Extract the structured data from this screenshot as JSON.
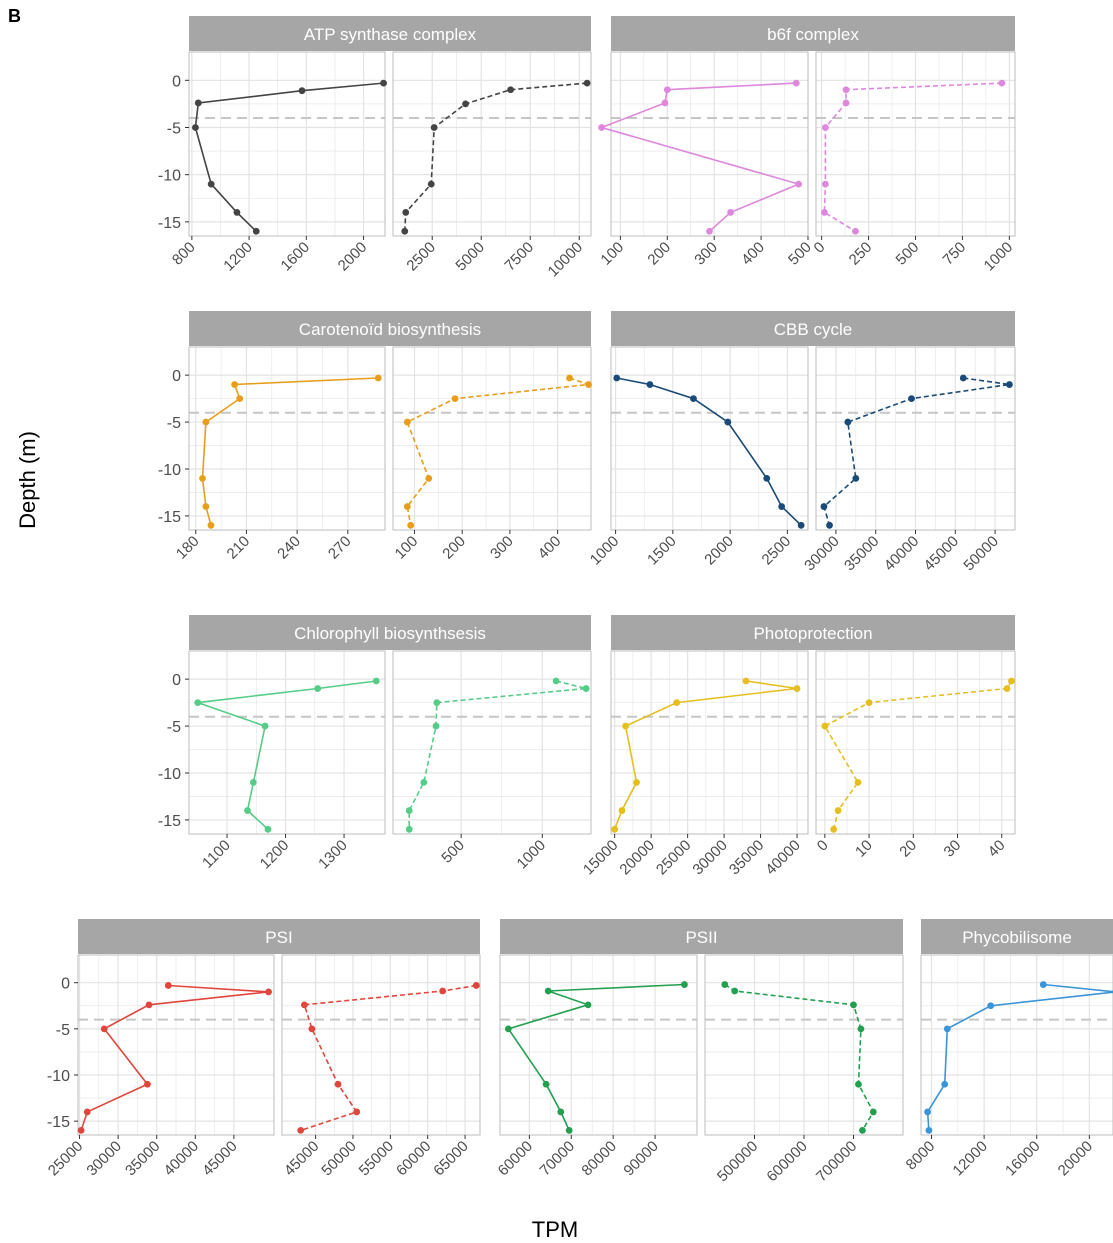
{
  "panel_label": "B",
  "ylabel": "Depth (m)",
  "xlabel": "TPM",
  "colors": {
    "atp": "#444444",
    "b6f": "#dd88dd",
    "carot": "#e79e1b",
    "cbb": "#1a4a77",
    "chl": "#55cc88",
    "photoprot": "#e6bf1e",
    "psi": "#e0463b",
    "psii": "#22a050",
    "phyco": "#3a95d8",
    "strip": "#a6a6a6",
    "grid": "#e3e3e3",
    "dash": "#c6c6c6"
  },
  "chart_data": {
    "type": "line",
    "ylim": [
      -16.5,
      3
    ],
    "y_ticks": [
      0,
      -5,
      -10,
      -15
    ],
    "y_tick_labels": [
      "0",
      "-5",
      "-10",
      "-15"
    ],
    "reference_line_depth": -4,
    "grid": true,
    "facets": [
      {
        "title": "ATP synthase complex",
        "color_key": "atp",
        "panels": [
          {
            "style": "solid",
            "xlim": [
              780,
              2150
            ],
            "x_ticks": [
              800,
              1200,
              1600,
              2000
            ],
            "x_tick_labels": [
              "800",
              "1200",
              "1600",
              "2000"
            ],
            "points": [
              {
                "x": 2140,
                "y": -0.3
              },
              {
                "x": 1570,
                "y": -1.1
              },
              {
                "x": 845,
                "y": -2.4
              },
              {
                "x": 825,
                "y": -5
              },
              {
                "x": 935,
                "y": -11
              },
              {
                "x": 1115,
                "y": -14
              },
              {
                "x": 1250,
                "y": -16
              }
            ]
          },
          {
            "style": "dashed",
            "xlim": [
              500,
              10600
            ],
            "x_ticks": [
              2500,
              5000,
              7500,
              10000
            ],
            "x_tick_labels": [
              "2500",
              "5000",
              "7500",
              "10000"
            ],
            "points": [
              {
                "x": 10400,
                "y": -0.3
              },
              {
                "x": 6500,
                "y": -1
              },
              {
                "x": 4200,
                "y": -2.5
              },
              {
                "x": 2600,
                "y": -5
              },
              {
                "x": 2450,
                "y": -11
              },
              {
                "x": 1150,
                "y": -14
              },
              {
                "x": 1100,
                "y": -16
              }
            ]
          }
        ]
      },
      {
        "title": "b6f complex",
        "color_key": "b6f",
        "panels": [
          {
            "style": "solid",
            "xlim": [
              80,
              500
            ],
            "x_ticks": [
              100,
              200,
              300,
              400,
              500
            ],
            "x_tick_labels": [
              "100",
              "200",
              "300",
              "400",
              "500"
            ],
            "points": [
              {
                "x": 475,
                "y": -0.3
              },
              {
                "x": 200,
                "y": -1
              },
              {
                "x": 195,
                "y": -2.4
              },
              {
                "x": 60,
                "y": -5
              },
              {
                "x": 480,
                "y": -11
              },
              {
                "x": 335,
                "y": -14
              },
              {
                "x": 290,
                "y": -16
              }
            ]
          },
          {
            "style": "dashed",
            "xlim": [
              -30,
              1030
            ],
            "x_ticks": [
              0,
              250,
              500,
              750,
              1000
            ],
            "x_tick_labels": [
              "0",
              "250",
              "500",
              "750",
              "1000"
            ],
            "points": [
              {
                "x": 960,
                "y": -0.3
              },
              {
                "x": 130,
                "y": -1
              },
              {
                "x": 130,
                "y": -2.4
              },
              {
                "x": 20,
                "y": -5
              },
              {
                "x": 20,
                "y": -11
              },
              {
                "x": 15,
                "y": -14
              },
              {
                "x": 180,
                "y": -16
              }
            ]
          }
        ]
      },
      {
        "title": "Carotenoïd biosynthesis",
        "color_key": "carot",
        "panels": [
          {
            "style": "solid",
            "xlim": [
              176,
              292
            ],
            "x_ticks": [
              180,
              210,
              240,
              270
            ],
            "x_tick_labels": [
              "180",
              "210",
              "240",
              "270"
            ],
            "points": [
              {
                "x": 288,
                "y": -0.3
              },
              {
                "x": 203,
                "y": -1
              },
              {
                "x": 206,
                "y": -2.5
              },
              {
                "x": 186,
                "y": -5
              },
              {
                "x": 184,
                "y": -11
              },
              {
                "x": 186,
                "y": -14
              },
              {
                "x": 189,
                "y": -16
              }
            ]
          },
          {
            "style": "dashed",
            "xlim": [
              55,
              470
            ],
            "x_ticks": [
              100,
              200,
              300,
              400
            ],
            "x_tick_labels": [
              "100",
              "200",
              "300",
              "400"
            ],
            "points": [
              {
                "x": 425,
                "y": -0.3
              },
              {
                "x": 465,
                "y": -1
              },
              {
                "x": 185,
                "y": -2.5
              },
              {
                "x": 85,
                "y": -5
              },
              {
                "x": 130,
                "y": -11
              },
              {
                "x": 85,
                "y": -14
              },
              {
                "x": 92,
                "y": -16
              }
            ]
          }
        ]
      },
      {
        "title": "CBB cycle",
        "color_key": "cbb",
        "panels": [
          {
            "style": "solid",
            "xlim": [
              960,
              2680
            ],
            "x_ticks": [
              1000,
              1500,
              2000,
              2500
            ],
            "x_tick_labels": [
              "1000",
              "1500",
              "2000",
              "2500"
            ],
            "points": [
              {
                "x": 1010,
                "y": -0.3
              },
              {
                "x": 1300,
                "y": -1
              },
              {
                "x": 1680,
                "y": -2.5
              },
              {
                "x": 1980,
                "y": -5
              },
              {
                "x": 2320,
                "y": -11
              },
              {
                "x": 2450,
                "y": -14
              },
              {
                "x": 2620,
                "y": -16
              }
            ]
          },
          {
            "style": "dashed",
            "xlim": [
              27500,
              52500
            ],
            "x_ticks": [
              30000,
              35000,
              40000,
              45000,
              50000
            ],
            "x_tick_labels": [
              "30000",
              "35000",
              "40000",
              "45000",
              "50000"
            ],
            "points": [
              {
                "x": 46000,
                "y": -0.3
              },
              {
                "x": 51800,
                "y": -1
              },
              {
                "x": 39500,
                "y": -2.5
              },
              {
                "x": 31500,
                "y": -5
              },
              {
                "x": 32500,
                "y": -11
              },
              {
                "x": 28500,
                "y": -14
              },
              {
                "x": 29200,
                "y": -16
              }
            ]
          }
        ]
      },
      {
        "title": "Chlorophyll biosynthsesis",
        "color_key": "chl",
        "panels": [
          {
            "style": "solid",
            "xlim": [
              1035,
              1370
            ],
            "x_ticks": [
              1100,
              1200,
              1300
            ],
            "x_tick_labels": [
              "1100",
              "1200",
              "1300"
            ],
            "points": [
              {
                "x": 1355,
                "y": -0.2
              },
              {
                "x": 1255,
                "y": -1
              },
              {
                "x": 1050,
                "y": -2.5
              },
              {
                "x": 1165,
                "y": -5
              },
              {
                "x": 1145,
                "y": -11
              },
              {
                "x": 1135,
                "y": -14
              },
              {
                "x": 1170,
                "y": -16
              }
            ]
          },
          {
            "style": "dashed",
            "xlim": [
              80,
              1300
            ],
            "x_ticks": [
              500,
              1000
            ],
            "x_tick_labels": [
              "500",
              "1000"
            ],
            "points": [
              {
                "x": 1085,
                "y": -0.2
              },
              {
                "x": 1270,
                "y": -1
              },
              {
                "x": 350,
                "y": -2.5
              },
              {
                "x": 345,
                "y": -5
              },
              {
                "x": 270,
                "y": -11
              },
              {
                "x": 180,
                "y": -14
              },
              {
                "x": 180,
                "y": -16
              }
            ]
          }
        ]
      },
      {
        "title": "Photoprotection",
        "color_key": "photoprot",
        "panels": [
          {
            "style": "solid",
            "xlim": [
              14500,
              41500
            ],
            "x_ticks": [
              15000,
              20000,
              25000,
              30000,
              35000,
              40000
            ],
            "x_tick_labels": [
              "15000",
              "20000",
              "25000",
              "30000",
              "35000",
              "40000"
            ],
            "points": [
              {
                "x": 33000,
                "y": -0.2
              },
              {
                "x": 40000,
                "y": -1
              },
              {
                "x": 23500,
                "y": -2.5
              },
              {
                "x": 16500,
                "y": -5
              },
              {
                "x": 18000,
                "y": -11
              },
              {
                "x": 16000,
                "y": -14
              },
              {
                "x": 15000,
                "y": -16
              }
            ]
          },
          {
            "style": "dashed",
            "xlim": [
              -2,
              43
            ],
            "x_ticks": [
              0,
              10,
              20,
              30,
              40
            ],
            "x_tick_labels": [
              "0",
              "10",
              "20",
              "30",
              "40"
            ],
            "points": [
              {
                "x": 42.2,
                "y": -0.2
              },
              {
                "x": 41.2,
                "y": -1
              },
              {
                "x": 10,
                "y": -2.5
              },
              {
                "x": 0,
                "y": -5
              },
              {
                "x": 7.5,
                "y": -11
              },
              {
                "x": 3,
                "y": -14
              },
              {
                "x": 2,
                "y": -16
              }
            ]
          }
        ]
      },
      {
        "title": "PSI",
        "color_key": "psi",
        "panels": [
          {
            "style": "solid",
            "xlim": [
              24800,
              50200
            ],
            "x_ticks": [
              25000,
              30000,
              35000,
              40000,
              45000
            ],
            "x_tick_labels": [
              "25000",
              "30000",
              "35000",
              "40000",
              "45000"
            ],
            "points": [
              {
                "x": 36500,
                "y": -0.3
              },
              {
                "x": 49500,
                "y": -1
              },
              {
                "x": 34000,
                "y": -2.4
              },
              {
                "x": 28200,
                "y": -5
              },
              {
                "x": 33800,
                "y": -11
              },
              {
                "x": 26000,
                "y": -14
              },
              {
                "x": 25200,
                "y": -16
              }
            ]
          },
          {
            "style": "dashed",
            "xlim": [
              40500,
              67000
            ],
            "x_ticks": [
              45000,
              50000,
              55000,
              60000,
              65000
            ],
            "x_tick_labels": [
              "45000",
              "50000",
              "55000",
              "60000",
              "65000"
            ],
            "points": [
              {
                "x": 66500,
                "y": -0.3
              },
              {
                "x": 62000,
                "y": -0.9
              },
              {
                "x": 43500,
                "y": -2.4
              },
              {
                "x": 44500,
                "y": -5
              },
              {
                "x": 48000,
                "y": -11
              },
              {
                "x": 50500,
                "y": -14
              },
              {
                "x": 43000,
                "y": -16
              }
            ]
          }
        ]
      },
      {
        "title": "PSII",
        "color_key": "psii",
        "panels": [
          {
            "style": "solid",
            "xlim": [
              53000,
              100000
            ],
            "x_ticks": [
              60000,
              70000,
              80000,
              90000
            ],
            "x_tick_labels": [
              "60000",
              "70000",
              "80000",
              "90000"
            ],
            "points": [
              {
                "x": 97000,
                "y": -0.2
              },
              {
                "x": 64500,
                "y": -0.9
              },
              {
                "x": 74000,
                "y": -2.4
              },
              {
                "x": 55000,
                "y": -5
              },
              {
                "x": 64000,
                "y": -11
              },
              {
                "x": 67500,
                "y": -14
              },
              {
                "x": 69500,
                "y": -16
              }
            ]
          },
          {
            "style": "dashed",
            "xlim": [
              400000,
              800000
            ],
            "x_ticks": [
              500000,
              600000,
              700000
            ],
            "x_tick_labels": [
              "500000",
              "600000",
              "700000"
            ],
            "points": [
              {
                "x": 440000,
                "y": -0.2
              },
              {
                "x": 460000,
                "y": -0.9
              },
              {
                "x": 700000,
                "y": -2.4
              },
              {
                "x": 715000,
                "y": -5
              },
              {
                "x": 710000,
                "y": -11
              },
              {
                "x": 740000,
                "y": -14
              },
              {
                "x": 718000,
                "y": -16
              }
            ]
          }
        ]
      },
      {
        "title": "Phycobilisome",
        "color_key": "phyco",
        "panels": [
          {
            "style": "solid",
            "xlim": [
              7200,
              21800
            ],
            "x_ticks": [
              8000,
              12000,
              16000,
              20000
            ],
            "x_tick_labels": [
              "8000",
              "12000",
              "16000",
              "20000"
            ],
            "points": [
              {
                "x": 16500,
                "y": -0.2
              },
              {
                "x": 22000,
                "y": -1
              },
              {
                "x": 12500,
                "y": -2.5
              },
              {
                "x": 9200,
                "y": -5
              },
              {
                "x": 9000,
                "y": -11
              },
              {
                "x": 7700,
                "y": -14
              },
              {
                "x": 7800,
                "y": -16
              }
            ]
          }
        ]
      }
    ]
  }
}
